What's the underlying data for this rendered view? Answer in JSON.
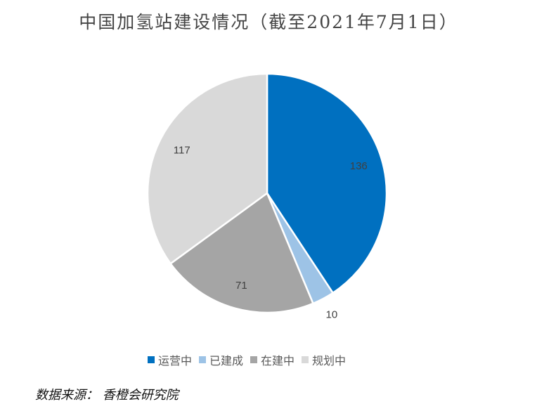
{
  "chart_data": {
    "type": "pie",
    "title": "中国加氢站建设情况（截至2021年7月1日）",
    "start_angle": "top, clockwise",
    "slices": [
      {
        "name": "运营中",
        "value": 136,
        "color": "#0070C0"
      },
      {
        "name": "已建成",
        "value": 10,
        "color": "#9DC3E6"
      },
      {
        "name": "在建中",
        "value": 71,
        "color": "#A5A5A5"
      },
      {
        "name": "规划中",
        "value": 117,
        "color": "#D9D9D9"
      }
    ],
    "legend_placement": "bottom"
  },
  "source": "数据来源：  香橙会研究院"
}
